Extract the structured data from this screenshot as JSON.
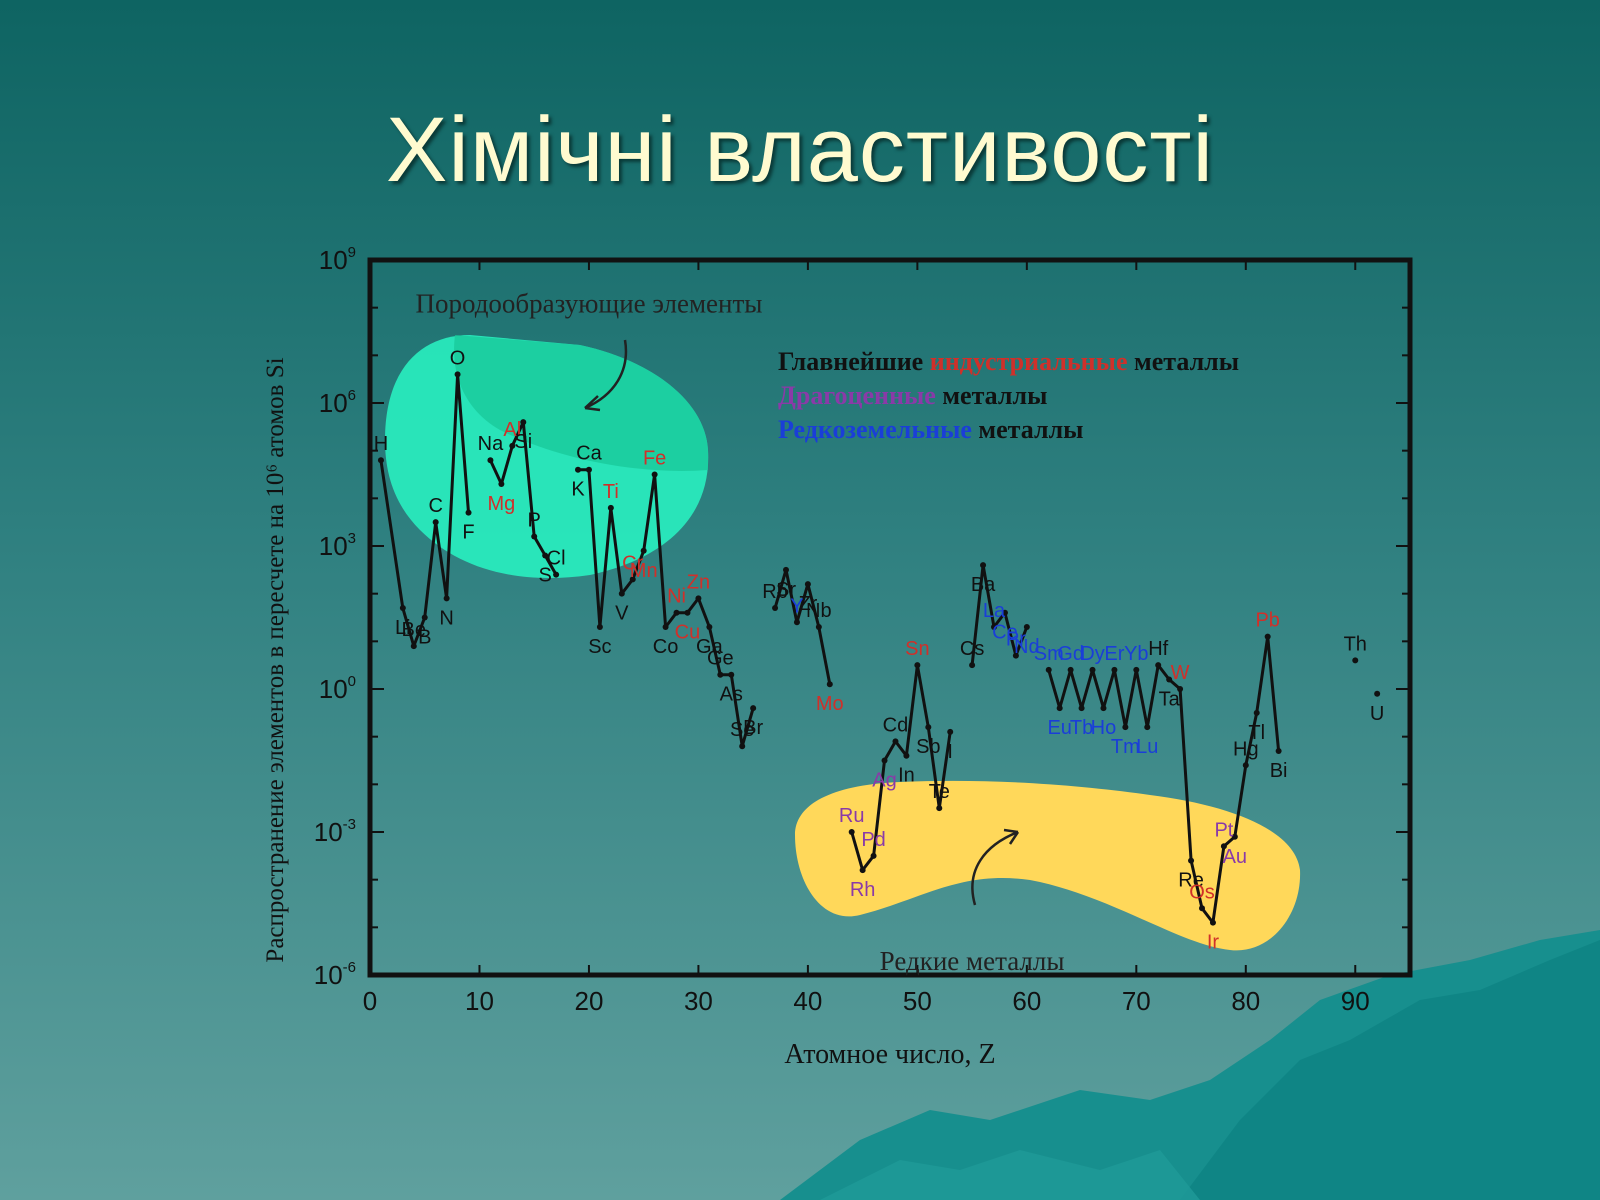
{
  "slide": {
    "title": "Хімічні властивості"
  },
  "colors": {
    "black": "#111111",
    "industrial": "#d0302a",
    "precious": "#8a3aa8",
    "rare_earth": "#1a3ed8",
    "rock_forming_area": "#29f0c0",
    "rare_metals_area": "#ffd85a"
  },
  "chart_data": {
    "type": "line",
    "title": "",
    "xlabel": "Атомное число, Z",
    "ylabel": "Распространение элементов в пересчете на 10⁶ атомов Si",
    "xlim": [
      0,
      95
    ],
    "ylim_log10": [
      -6,
      9
    ],
    "y_scale": "log",
    "grid": false,
    "x_ticks": [
      {
        "v": 0,
        "label": "0"
      },
      {
        "v": 10,
        "label": "10"
      },
      {
        "v": 20,
        "label": "20"
      },
      {
        "v": 30,
        "label": "30"
      },
      {
        "v": 40,
        "label": "40"
      },
      {
        "v": 50,
        "label": "50"
      },
      {
        "v": 60,
        "label": "60"
      },
      {
        "v": 70,
        "label": "70"
      },
      {
        "v": 80,
        "label": "80"
      },
      {
        "v": 90,
        "label": "90"
      }
    ],
    "y_ticks": [
      {
        "v": 9,
        "base": "10",
        "exp": "9"
      },
      {
        "v": 6,
        "base": "10",
        "exp": "6"
      },
      {
        "v": 3,
        "base": "10",
        "exp": "3"
      },
      {
        "v": 0,
        "base": "10",
        "exp": "0"
      },
      {
        "v": -3,
        "base": "10",
        "exp": "-3"
      },
      {
        "v": -6,
        "base": "10",
        "exp": "-6"
      }
    ],
    "legend": [
      {
        "parts": [
          {
            "text": "Главнейшие ",
            "c": "black"
          },
          {
            "text": "индустриальные",
            "c": "industrial"
          },
          {
            "text": " металлы",
            "c": "black"
          }
        ]
      },
      {
        "parts": [
          {
            "text": "Драгоценные",
            "c": "precious"
          },
          {
            "text": " металлы",
            "c": "black"
          }
        ]
      },
      {
        "parts": [
          {
            "text": "Редкоземельные",
            "c": "rare_earth"
          },
          {
            "text": " металлы",
            "c": "black"
          }
        ]
      }
    ],
    "annotations": [
      {
        "text": "Породообразующие элементы",
        "z": 20,
        "log": 7.9
      },
      {
        "text": "Редкие металлы",
        "z": 55,
        "log": -5.9
      }
    ],
    "points": [
      {
        "z": 1,
        "s": "H",
        "y": 4.8,
        "c": "black"
      },
      {
        "z": 3,
        "s": "Li",
        "y": 1.7,
        "c": "black"
      },
      {
        "z": 4,
        "s": "Be",
        "y": 0.9,
        "c": "black"
      },
      {
        "z": 5,
        "s": "B",
        "y": 1.5,
        "c": "black"
      },
      {
        "z": 6,
        "s": "C",
        "y": 3.5,
        "c": "black"
      },
      {
        "z": 7,
        "s": "N",
        "y": 1.9,
        "c": "black"
      },
      {
        "z": 8,
        "s": "O",
        "y": 6.6,
        "c": "black"
      },
      {
        "z": 9,
        "s": "F",
        "y": 3.7,
        "c": "black"
      },
      {
        "z": 11,
        "s": "Na",
        "y": 4.8,
        "c": "black"
      },
      {
        "z": 12,
        "s": "Mg",
        "y": 4.3,
        "c": "industrial"
      },
      {
        "z": 13,
        "s": "Al",
        "y": 5.1,
        "c": "industrial"
      },
      {
        "z": 14,
        "s": "Si",
        "y": 5.6,
        "c": "black"
      },
      {
        "z": 15,
        "s": "P",
        "y": 3.2,
        "c": "black"
      },
      {
        "z": 16,
        "s": "S",
        "y": 2.8,
        "c": "black"
      },
      {
        "z": 17,
        "s": "Cl",
        "y": 2.4,
        "c": "black"
      },
      {
        "z": 19,
        "s": "K",
        "y": 4.6,
        "c": "black"
      },
      {
        "z": 20,
        "s": "Ca",
        "y": 4.6,
        "c": "black"
      },
      {
        "z": 21,
        "s": "Sc",
        "y": 1.3,
        "c": "black"
      },
      {
        "z": 22,
        "s": "Ti",
        "y": 3.8,
        "c": "industrial"
      },
      {
        "z": 23,
        "s": "V",
        "y": 2.0,
        "c": "black"
      },
      {
        "z": 24,
        "s": "Cr",
        "y": 2.3,
        "c": "industrial"
      },
      {
        "z": 25,
        "s": "Mn",
        "y": 2.9,
        "c": "industrial"
      },
      {
        "z": 26,
        "s": "Fe",
        "y": 4.5,
        "c": "industrial"
      },
      {
        "z": 27,
        "s": "Co",
        "y": 1.3,
        "c": "black"
      },
      {
        "z": 28,
        "s": "Ni",
        "y": 1.6,
        "c": "industrial"
      },
      {
        "z": 29,
        "s": "Cu",
        "y": 1.6,
        "c": "industrial"
      },
      {
        "z": 30,
        "s": "Zn",
        "y": 1.9,
        "c": "industrial"
      },
      {
        "z": 31,
        "s": "Ga",
        "y": 1.3,
        "c": "black"
      },
      {
        "z": 32,
        "s": "Ge",
        "y": 0.3,
        "c": "black"
      },
      {
        "z": 33,
        "s": "As",
        "y": 0.3,
        "c": "black"
      },
      {
        "z": 34,
        "s": "Se",
        "y": -1.2,
        "c": "black"
      },
      {
        "z": 35,
        "s": "Br",
        "y": -0.4,
        "c": "black"
      },
      {
        "z": 37,
        "s": "Rb",
        "y": 1.7,
        "c": "black"
      },
      {
        "z": 38,
        "s": "Sr",
        "y": 2.5,
        "c": "black"
      },
      {
        "z": 39,
        "s": "Y",
        "y": 1.4,
        "c": "rare_earth"
      },
      {
        "z": 40,
        "s": "Zr",
        "y": 2.2,
        "c": "black"
      },
      {
        "z": 41,
        "s": "Nb",
        "y": 1.3,
        "c": "black"
      },
      {
        "z": 42,
        "s": "Mo",
        "y": 0.1,
        "c": "industrial"
      },
      {
        "z": 44,
        "s": "Ru",
        "y": -3.0,
        "c": "precious"
      },
      {
        "z": 45,
        "s": "Rh",
        "y": -3.8,
        "c": "precious"
      },
      {
        "z": 46,
        "s": "Pd",
        "y": -3.5,
        "c": "precious"
      },
      {
        "z": 47,
        "s": "Ag",
        "y": -1.5,
        "c": "precious"
      },
      {
        "z": 48,
        "s": "Cd",
        "y": -1.1,
        "c": "black"
      },
      {
        "z": 49,
        "s": "In",
        "y": -1.4,
        "c": "black"
      },
      {
        "z": 50,
        "s": "Sn",
        "y": 0.5,
        "c": "industrial"
      },
      {
        "z": 51,
        "s": "Sb",
        "y": -0.8,
        "c": "black"
      },
      {
        "z": 52,
        "s": "Te",
        "y": -2.5,
        "c": "black"
      },
      {
        "z": 53,
        "s": "I",
        "y": -0.9,
        "c": "black"
      },
      {
        "z": 55,
        "s": "Cs",
        "y": 0.5,
        "c": "black"
      },
      {
        "z": 56,
        "s": "Ba",
        "y": 2.6,
        "c": "black"
      },
      {
        "z": 57,
        "s": "La",
        "y": 1.3,
        "c": "rare_earth"
      },
      {
        "z": 58,
        "s": "Ce",
        "y": 1.6,
        "c": "rare_earth"
      },
      {
        "z": 59,
        "s": "Pr",
        "y": 0.7,
        "c": "rare_earth"
      },
      {
        "z": 60,
        "s": "Nd",
        "y": 1.3,
        "c": "rare_earth"
      },
      {
        "z": 62,
        "s": "Sm",
        "y": 0.4,
        "c": "rare_earth"
      },
      {
        "z": 63,
        "s": "Eu",
        "y": -0.4,
        "c": "rare_earth"
      },
      {
        "z": 64,
        "s": "Gd",
        "y": 0.4,
        "c": "rare_earth"
      },
      {
        "z": 65,
        "s": "Tb",
        "y": -0.4,
        "c": "rare_earth"
      },
      {
        "z": 66,
        "s": "Dy",
        "y": 0.4,
        "c": "rare_earth"
      },
      {
        "z": 67,
        "s": "Ho",
        "y": -0.4,
        "c": "rare_earth"
      },
      {
        "z": 68,
        "s": "Er",
        "y": 0.4,
        "c": "rare_earth"
      },
      {
        "z": 69,
        "s": "Tm",
        "y": -0.8,
        "c": "rare_earth"
      },
      {
        "z": 70,
        "s": "Yb",
        "y": 0.4,
        "c": "rare_earth"
      },
      {
        "z": 71,
        "s": "Lu",
        "y": -0.8,
        "c": "rare_earth"
      },
      {
        "z": 72,
        "s": "Hf",
        "y": 0.5,
        "c": "black"
      },
      {
        "z": 73,
        "s": "Ta",
        "y": 0.2,
        "c": "black"
      },
      {
        "z": 74,
        "s": "W",
        "y": 0.0,
        "c": "industrial"
      },
      {
        "z": 75,
        "s": "Re",
        "y": -3.6,
        "c": "black"
      },
      {
        "z": 76,
        "s": "Os",
        "y": -4.6,
        "c": "industrial"
      },
      {
        "z": 77,
        "s": "Ir",
        "y": -4.9,
        "c": "industrial"
      },
      {
        "z": 78,
        "s": "Pt",
        "y": -3.3,
        "c": "precious"
      },
      {
        "z": 79,
        "s": "Au",
        "y": -3.1,
        "c": "precious"
      },
      {
        "z": 80,
        "s": "Hg",
        "y": -1.6,
        "c": "black"
      },
      {
        "z": 81,
        "s": "Tl",
        "y": -0.5,
        "c": "black"
      },
      {
        "z": 82,
        "s": "Pb",
        "y": 1.1,
        "c": "industrial"
      },
      {
        "z": 83,
        "s": "Bi",
        "y": -1.3,
        "c": "black"
      },
      {
        "z": 90,
        "s": "Th",
        "y": 0.6,
        "c": "black"
      },
      {
        "z": 92,
        "s": "U",
        "y": -0.1,
        "c": "black"
      }
    ],
    "line_segments": [
      [
        1,
        3,
        4,
        5,
        6,
        7,
        8,
        9
      ],
      [
        11,
        12,
        13,
        14,
        15,
        16,
        17
      ],
      [
        19,
        20,
        21,
        22,
        23,
        24,
        25,
        26,
        27,
        28,
        29,
        30,
        31,
        32,
        33,
        34,
        35
      ],
      [
        37,
        38,
        39,
        40,
        41,
        42
      ],
      [
        44,
        45,
        46,
        47,
        48,
        49,
        50,
        51,
        52,
        53
      ],
      [
        55,
        56,
        57,
        58,
        59,
        60
      ],
      [
        62,
        63,
        64,
        65,
        66,
        67,
        68,
        69,
        70,
        71,
        72,
        73,
        74,
        75,
        76,
        77,
        78,
        79,
        80,
        81,
        82,
        83
      ]
    ]
  }
}
